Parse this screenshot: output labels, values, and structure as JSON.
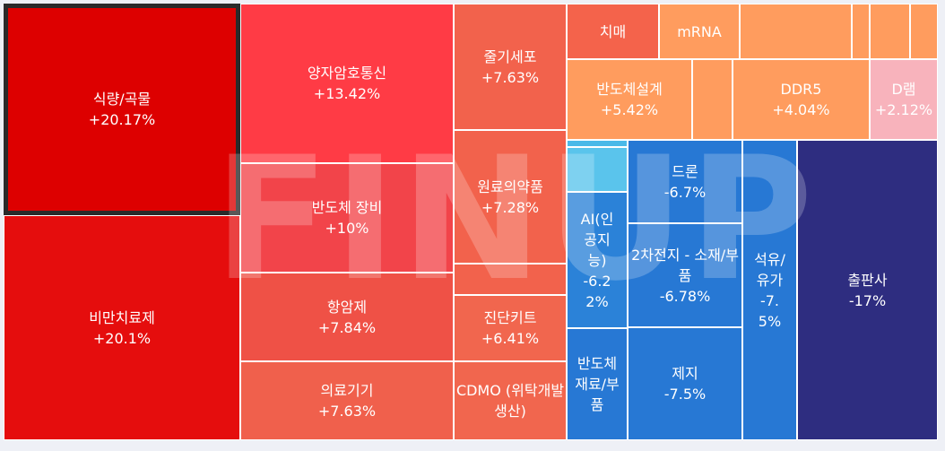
{
  "watermark": "FINUP",
  "chart_data": {
    "type": "treemap",
    "selected": "식량/곡물",
    "items": [
      {
        "label": "식량/곡물",
        "value": "+20.17%",
        "color": "#dd0000"
      },
      {
        "label": "비만치료제",
        "value": "+20.1%",
        "color": "#e50d0d"
      },
      {
        "label": "양자암호통신",
        "value": "+13.42%",
        "color": "#ff3b45"
      },
      {
        "label": "반도체 장비",
        "value": "+10%",
        "color": "#f2444a"
      },
      {
        "label": "항암제",
        "value": "+7.84%",
        "color": "#ef5146"
      },
      {
        "label": "의료기기",
        "value": "+7.63%",
        "color": "#f0604c"
      },
      {
        "label": "줄기세포",
        "value": "+7.63%",
        "color": "#f2624c"
      },
      {
        "label": "원료의약품",
        "value": "+7.28%",
        "color": "#f2624c"
      },
      {
        "label": "",
        "value": "",
        "color": "#f2624c"
      },
      {
        "label": "진단키트",
        "value": "+6.41%",
        "color": "#f1664e"
      },
      {
        "label": "CDMO (위탁개발생산)",
        "value": "",
        "color": "#f1664e"
      },
      {
        "label": "치매",
        "value": "",
        "color": "#f4634b"
      },
      {
        "label": "mRNA",
        "value": "",
        "color": "#ff9c5e"
      },
      {
        "label": "",
        "value": "",
        "color": "#ff9c5e"
      },
      {
        "label": "",
        "value": "",
        "color": "#ff9c5e"
      },
      {
        "label": "",
        "value": "",
        "color": "#ff9c5e"
      },
      {
        "label": "",
        "value": "",
        "color": "#ff9c5e"
      },
      {
        "label": "반도체설계",
        "value": "+5.42%",
        "color": "#ff9c5e"
      },
      {
        "label": "",
        "value": "",
        "color": "#ff9c5e"
      },
      {
        "label": "DDR5",
        "value": "+4.04%",
        "color": "#ff9c5e"
      },
      {
        "label": "D램",
        "value": "+2.12%",
        "color": "#f8b3bc"
      },
      {
        "label": "",
        "value": "",
        "color": "#4ab9e8"
      },
      {
        "label": "",
        "value": "",
        "color": "#5ac4ec"
      },
      {
        "label": "AI(인공지능)",
        "value": "-6.22%",
        "color": "#2b82d8"
      },
      {
        "label": "드론",
        "value": "-6.7%",
        "color": "#2778d4"
      },
      {
        "label": "2차전지 - 소재/부품",
        "value": "-6.78%",
        "color": "#2778d4"
      },
      {
        "label": "반도체재료/부품",
        "value": "",
        "color": "#2778d4"
      },
      {
        "label": "제지",
        "value": "-7.5%",
        "color": "#2778d4"
      },
      {
        "label": "석유/유가",
        "value": "-7.5%",
        "color": "#2778d4"
      },
      {
        "label": "출판사",
        "value": "-17%",
        "color": "#2e2d80"
      }
    ]
  }
}
